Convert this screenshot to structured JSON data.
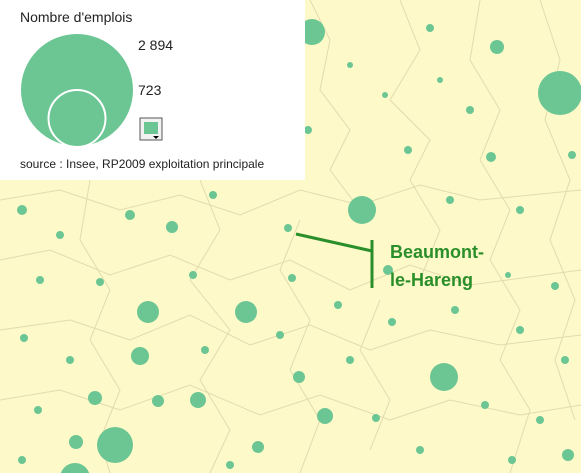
{
  "legend": {
    "title": "Nombre d'emplois",
    "items": [
      {
        "value": 2894,
        "label": "2 894"
      },
      {
        "value": 723,
        "label": "723"
      }
    ],
    "source": "source : Insee, RP2009 exploitation principale"
  },
  "annotation": {
    "lines": [
      "Beaumont-",
      "le-Hareng"
    ]
  },
  "color": "#6cc694"
}
